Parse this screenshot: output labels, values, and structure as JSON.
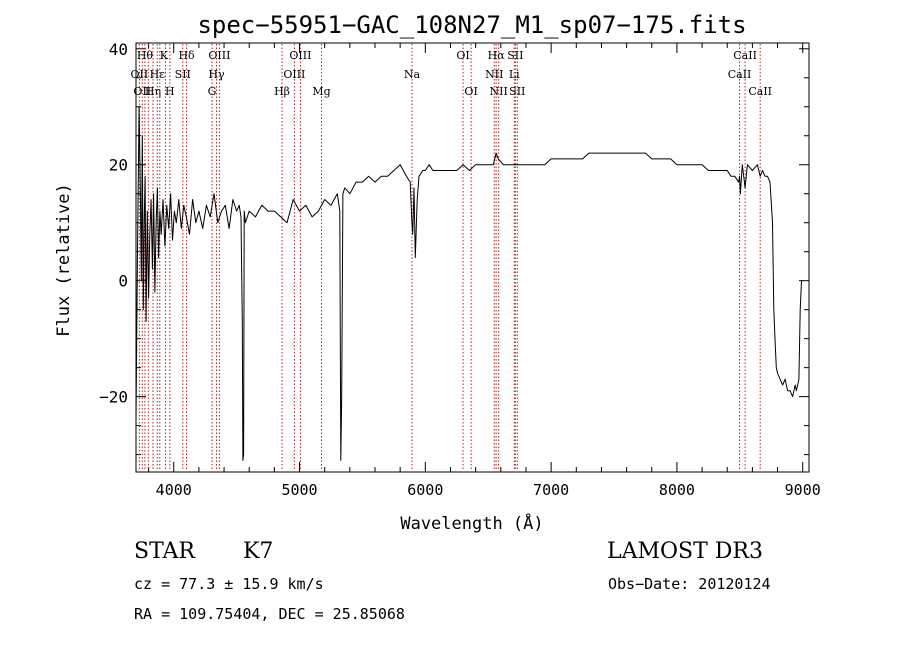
{
  "chart_data": {
    "type": "line",
    "title": "spec−55951−GAC_108N27_M1_sp07−175.fits",
    "xlabel": "Wavelength (Å)",
    "ylabel": "Flux (relative)",
    "xlim": [
      3700,
      9050
    ],
    "ylim": [
      -33,
      41
    ],
    "x_ticks": [
      4000,
      5000,
      6000,
      7000,
      8000,
      9000
    ],
    "x_tick_labels": [
      "4000",
      "5000",
      "6000",
      "7000",
      "8000",
      "9000"
    ],
    "y_ticks": [
      -20,
      0,
      20,
      40
    ],
    "y_tick_labels": [
      "−20",
      "0",
      "20",
      "40"
    ],
    "grid": false,
    "series": [
      {
        "name": "spectrum",
        "color": "#000000",
        "x": [
          3700,
          3712,
          3725,
          3735,
          3742,
          3750,
          3758,
          3765,
          3772,
          3780,
          3790,
          3800,
          3810,
          3820,
          3830,
          3840,
          3850,
          3860,
          3870,
          3880,
          3890,
          3900,
          3915,
          3930,
          3945,
          3960,
          3975,
          3990,
          4005,
          4020,
          4040,
          4060,
          4080,
          4100,
          4125,
          4150,
          4175,
          4200,
          4230,
          4260,
          4290,
          4320,
          4350,
          4380,
          4410,
          4440,
          4470,
          4500,
          4520,
          4535,
          4545,
          4550,
          4555,
          4560,
          4570,
          4600,
          4650,
          4700,
          4750,
          4800,
          4850,
          4900,
          4950,
          5000,
          5050,
          5100,
          5150,
          5200,
          5250,
          5300,
          5320,
          5328,
          5335,
          5345,
          5360,
          5400,
          5450,
          5500,
          5550,
          5600,
          5650,
          5700,
          5750,
          5800,
          5850,
          5880,
          5893,
          5900,
          5910,
          5920,
          5935,
          5950,
          5980,
          6000,
          6030,
          6060,
          6100,
          6150,
          6200,
          6250,
          6300,
          6350,
          6400,
          6450,
          6500,
          6540,
          6563,
          6580,
          6620,
          6660,
          6700,
          6750,
          6800,
          6850,
          6900,
          6950,
          7000,
          7050,
          7100,
          7150,
          7200,
          7250,
          7300,
          7350,
          7400,
          7450,
          7500,
          7550,
          7600,
          7650,
          7700,
          7750,
          7800,
          7850,
          7900,
          7950,
          8000,
          8050,
          8100,
          8150,
          8200,
          8250,
          8300,
          8350,
          8400,
          8430,
          8460,
          8490,
          8498,
          8505,
          8520,
          8542,
          8560,
          8600,
          8640,
          8662,
          8680,
          8700,
          8720,
          8740,
          8760,
          8770,
          8780,
          8790,
          8800,
          8820,
          8840,
          8860,
          8880,
          8900,
          8920,
          8940,
          8950,
          8960,
          8970,
          8980,
          8990,
          9000
        ],
        "y": [
          -24,
          5,
          30,
          15,
          0,
          25,
          -5,
          10,
          18,
          -7,
          12,
          -3,
          8,
          14,
          2,
          15,
          -2,
          10,
          16,
          4,
          12,
          8,
          14,
          6,
          13,
          9,
          15,
          7,
          12,
          10,
          14,
          9,
          13,
          11,
          8,
          14,
          10,
          12,
          9,
          13,
          11,
          15,
          10,
          12,
          13,
          9,
          14,
          12,
          13,
          11,
          -7,
          -31,
          -30,
          12,
          10,
          12,
          11,
          13,
          12,
          12,
          11,
          10,
          14,
          12,
          13,
          11,
          12,
          14,
          13,
          15,
          12,
          -31,
          -20,
          15,
          16,
          15,
          17,
          17,
          18,
          17,
          18,
          18,
          19,
          20,
          18,
          17,
          10,
          8,
          16,
          4,
          14,
          18,
          19,
          19,
          20,
          19,
          19,
          19,
          19,
          19,
          20,
          19,
          20,
          20,
          20,
          20,
          22,
          21,
          20,
          20,
          20,
          20,
          20,
          20,
          20,
          20,
          21,
          21,
          21,
          21,
          21,
          21,
          22,
          22,
          22,
          22,
          22,
          22,
          22,
          22,
          22,
          22,
          21,
          21,
          21,
          21,
          20,
          20,
          20,
          20,
          20,
          19,
          19,
          19,
          19,
          18,
          18,
          17,
          18,
          15,
          20,
          16,
          20,
          19,
          20,
          18,
          19,
          18,
          18,
          17,
          10,
          -5,
          -10,
          -15,
          -16,
          -17,
          -18,
          -17,
          -19,
          -19,
          -20,
          -18,
          -19,
          -18,
          -17,
          -5,
          0,
          0
        ]
      }
    ],
    "lines": [
      {
        "wavelength": 3727,
        "label": "OII"
      },
      {
        "wavelength": 3750,
        "label": "OII"
      },
      {
        "wavelength": 3771,
        "label": "Hθ"
      },
      {
        "wavelength": 3798,
        "label": "Hη"
      },
      {
        "wavelength": 3835,
        "label": "Hη"
      },
      {
        "wavelength": 3869,
        "label": "Hε"
      },
      {
        "wavelength": 3889,
        "label": "Hε"
      },
      {
        "wavelength": 3934,
        "label": "K"
      },
      {
        "wavelength": 3969,
        "label": "H"
      },
      {
        "wavelength": 4072,
        "label": "SII"
      },
      {
        "wavelength": 4102,
        "label": "Hδ"
      },
      {
        "wavelength": 4304,
        "label": "G"
      },
      {
        "wavelength": 4340,
        "label": "Hγ"
      },
      {
        "wavelength": 4363,
        "label": "OIII"
      },
      {
        "wavelength": 4861,
        "label": "Hβ"
      },
      {
        "wavelength": 4959,
        "label": "OIII"
      },
      {
        "wavelength": 5007,
        "label": "OIII"
      },
      {
        "wavelength": 5175,
        "label": "Mg"
      },
      {
        "wavelength": 5894,
        "label": "Na"
      },
      {
        "wavelength": 6300,
        "label": "OI"
      },
      {
        "wavelength": 6364,
        "label": "OI"
      },
      {
        "wavelength": 6548,
        "label": "NII"
      },
      {
        "wavelength": 6563,
        "label": "Hα"
      },
      {
        "wavelength": 6583,
        "label": "NII"
      },
      {
        "wavelength": 6707,
        "label": "Li"
      },
      {
        "wavelength": 6716,
        "label": "SII"
      },
      {
        "wavelength": 6731,
        "label": "SII"
      },
      {
        "wavelength": 8498,
        "label": "CaII"
      },
      {
        "wavelength": 8542,
        "label": "CaII"
      },
      {
        "wavelength": 8662,
        "label": "CaII"
      }
    ],
    "line_color": "#b22222",
    "line_label_rows": [
      [
        [
          3771,
          "Hθ"
        ],
        [
          3921,
          "K"
        ],
        [
          4102,
          "Hδ"
        ],
        [
          4363,
          "OIII"
        ],
        [
          5007,
          "OIII"
        ],
        [
          6300,
          "OI"
        ],
        [
          6563,
          "Hα"
        ],
        [
          6716,
          "SII"
        ],
        [
          8542,
          "CaII"
        ]
      ],
      [
        [
          3727,
          "OII"
        ],
        [
          3869,
          "Hε"
        ],
        [
          4072,
          "SII"
        ],
        [
          4340,
          "Hγ"
        ],
        [
          4959,
          "OIII"
        ],
        [
          5894,
          "Na"
        ],
        [
          6548,
          "NII"
        ],
        [
          6707,
          "Li"
        ],
        [
          8498,
          "CaII"
        ]
      ],
      [
        [
          3750,
          "OII"
        ],
        [
          3835,
          "Hη"
        ],
        [
          3969,
          "H"
        ],
        [
          4304,
          "G"
        ],
        [
          4861,
          "Hβ"
        ],
        [
          5175,
          "Mg"
        ],
        [
          6364,
          "OI"
        ],
        [
          6583,
          "NII"
        ],
        [
          6731,
          "SII"
        ],
        [
          8662,
          "CaII"
        ]
      ]
    ]
  },
  "info": {
    "object_class": "STAR",
    "subclass": "K7",
    "survey": "LAMOST DR3",
    "redshift": "cz = 77.3 ± 15.9 km/s",
    "obs_date": "Obs−Date: 20120124",
    "coords": "RA = 109.75404, DEC =  25.85068"
  }
}
